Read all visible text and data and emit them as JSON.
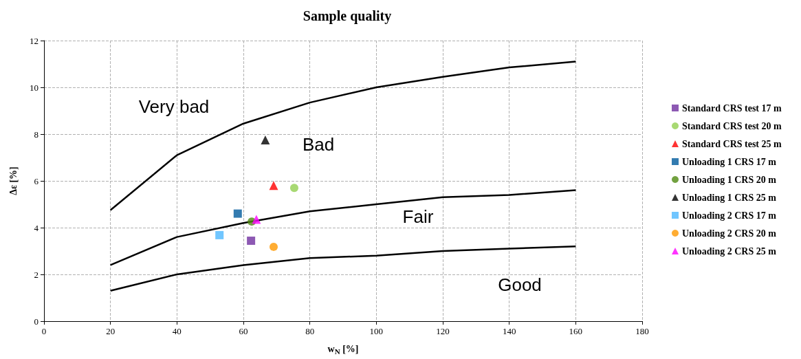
{
  "chart_data": {
    "type": "scatter",
    "title": "Sample quality",
    "xlabel": "w$_{N}$ [%]",
    "ylabel": "Δε [%]",
    "xlim": [
      0,
      180
    ],
    "xticks": [
      0,
      20,
      40,
      60,
      80,
      100,
      120,
      140,
      160,
      180
    ],
    "ylim": [
      0,
      12
    ],
    "yticks": [
      0,
      2,
      4,
      6,
      8,
      10,
      12
    ],
    "grid": true,
    "legend": "right",
    "annotations": [
      "Very bad",
      "Bad",
      "Fair",
      "Good"
    ],
    "series": [
      {
        "type": "line",
        "color": "#000000",
        "marker": "none",
        "x": [
          20,
          40,
          60,
          80,
          100,
          120,
          140,
          160
        ],
        "values": [
          4.75,
          7.1,
          8.45,
          9.35,
          10,
          10.45,
          10.85,
          11.1
        ]
      },
      {
        "type": "line",
        "color": "#000000",
        "marker": "none",
        "x": [
          20,
          40,
          60,
          80,
          100,
          120,
          140,
          160
        ],
        "values": [
          2.4,
          3.6,
          4.2,
          4.7,
          5.0,
          5.3,
          5.4,
          5.6
        ]
      },
      {
        "type": "line",
        "color": "#000000",
        "marker": "none",
        "x": [
          20,
          40,
          60,
          80,
          100,
          120,
          140,
          160
        ],
        "values": [
          1.3,
          2.0,
          2.4,
          2.7,
          2.8,
          3.0,
          3.1,
          3.2
        ]
      },
      {
        "name": "Standard CRS test 17 m",
        "color": "#7030a0",
        "marker": "square",
        "x": [
          62.3
        ],
        "values": [
          3.44
        ]
      },
      {
        "name": "Standard CRS test 20 m",
        "color": "#92d050",
        "marker": "circle",
        "x": [
          75.3
        ],
        "values": [
          5.7
        ]
      },
      {
        "name": "Standard CRS test 25 m",
        "color": "#ff0000",
        "marker": "triangle",
        "x": [
          69.1
        ],
        "values": [
          5.8
        ]
      },
      {
        "name": "Unloading 1 CRS 17 m",
        "color": "#005a9c",
        "marker": "square",
        "x": [
          58.3
        ],
        "values": [
          4.6
        ]
      },
      {
        "name": "Unloading 1 CRS 20 m",
        "color": "#4f8a10",
        "marker": "circle",
        "x": [
          62.5
        ],
        "values": [
          4.26
        ]
      },
      {
        "name": "Unloading 1 CRS 25 m",
        "color": "#000000",
        "marker": "triangle",
        "x": [
          66.6
        ],
        "values": [
          7.75
        ]
      },
      {
        "name": "Unloading 2 CRS 17 m",
        "color": "#4db8ff",
        "marker": "square",
        "x": [
          52.8
        ],
        "values": [
          3.68
        ]
      },
      {
        "name": "Unloading 2 CRS 20 m",
        "color": "#ff9900",
        "marker": "circle",
        "x": [
          69.1
        ],
        "values": [
          3.18
        ]
      },
      {
        "name": "Unloading 2 CRS 25 m",
        "color": "#ff00ff",
        "marker": "triangle",
        "x": [
          63.9
        ],
        "values": [
          4.35
        ]
      }
    ]
  }
}
